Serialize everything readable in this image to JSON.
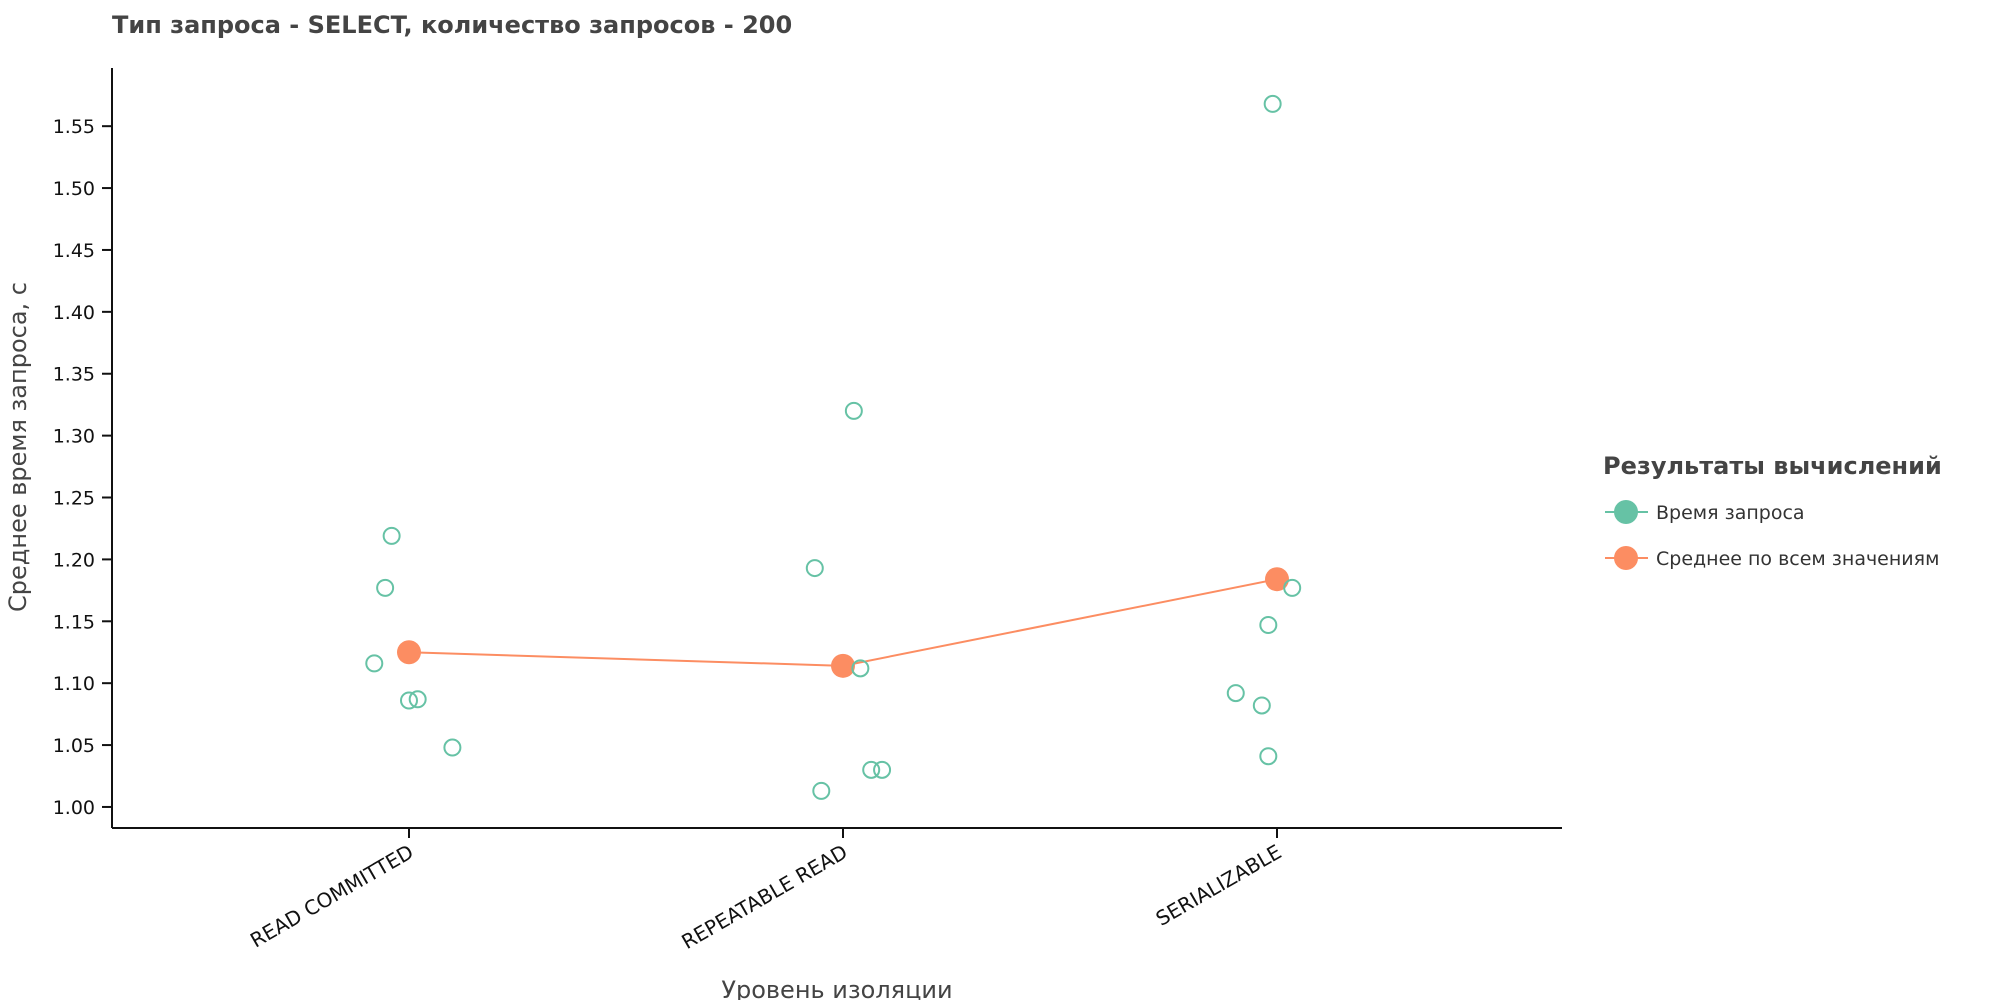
{
  "chart_data": {
    "type": "scatter",
    "title": "Тип запроса - SELECT, количество запросов - 200",
    "xlabel": "Уровень изоляции",
    "ylabel": "Среднее время запроса, с",
    "categories": [
      "READ COMMITTED",
      "REPEATABLE READ",
      "SERIALIZABLE"
    ],
    "ylim": [
      0.983,
      1.597
    ],
    "yticks": [
      "1.00",
      "1.05",
      "1.10",
      "1.15",
      "1.20",
      "1.25",
      "1.30",
      "1.35",
      "1.40",
      "1.45",
      "1.50",
      "1.55"
    ],
    "grid": false,
    "legend": {
      "title": "Результаты вычислений",
      "placement": "right"
    },
    "series": [
      {
        "name": "Время запроса",
        "kind": "points",
        "color": "#66c2a5",
        "points": [
          {
            "category": "READ COMMITTED",
            "offset": -0.04,
            "y": 1.219
          },
          {
            "category": "READ COMMITTED",
            "offset": -0.055,
            "y": 1.177
          },
          {
            "category": "READ COMMITTED",
            "offset": -0.08,
            "y": 1.116
          },
          {
            "category": "READ COMMITTED",
            "offset": 0.0,
            "y": 1.086
          },
          {
            "category": "READ COMMITTED",
            "offset": 0.02,
            "y": 1.087
          },
          {
            "category": "READ COMMITTED",
            "offset": 0.1,
            "y": 1.048
          },
          {
            "category": "REPEATABLE READ",
            "offset": 0.025,
            "y": 1.32
          },
          {
            "category": "REPEATABLE READ",
            "offset": -0.065,
            "y": 1.193
          },
          {
            "category": "REPEATABLE READ",
            "offset": 0.04,
            "y": 1.112
          },
          {
            "category": "REPEATABLE READ",
            "offset": 0.065,
            "y": 1.03
          },
          {
            "category": "REPEATABLE READ",
            "offset": 0.09,
            "y": 1.03
          },
          {
            "category": "REPEATABLE READ",
            "offset": -0.05,
            "y": 1.013
          },
          {
            "category": "SERIALIZABLE",
            "offset": -0.01,
            "y": 1.568
          },
          {
            "category": "SERIALIZABLE",
            "offset": 0.035,
            "y": 1.177
          },
          {
            "category": "SERIALIZABLE",
            "offset": -0.02,
            "y": 1.147
          },
          {
            "category": "SERIALIZABLE",
            "offset": -0.095,
            "y": 1.092
          },
          {
            "category": "SERIALIZABLE",
            "offset": -0.035,
            "y": 1.082
          },
          {
            "category": "SERIALIZABLE",
            "offset": -0.02,
            "y": 1.041
          }
        ]
      },
      {
        "name": "Среднее по всем значениям",
        "kind": "line",
        "color": "#fc8d62",
        "values": [
          1.125,
          1.114,
          1.184
        ]
      }
    ]
  }
}
